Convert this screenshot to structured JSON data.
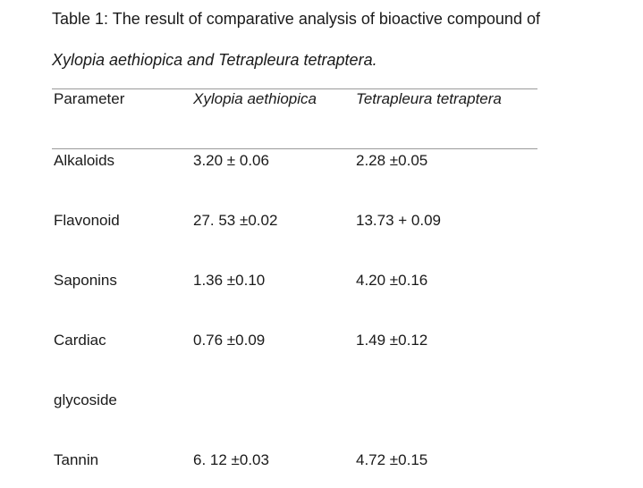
{
  "caption": {
    "label": "Table 1:",
    "text": " The result of comparative analysis of bioactive compound of",
    "line2": "Xylopia aethiopica and Tetrapleura tetraptera."
  },
  "table": {
    "headers": [
      "Parameter",
      "Xylopia aethiopica",
      "Tetrapleura tetraptera"
    ],
    "rows": [
      [
        "Alkaloids",
        "3.20 ± 0.06",
        "2.28 ±0.05"
      ],
      [
        "Flavonoid",
        "27. 53 ±0.02",
        "13.73 + 0.09"
      ],
      [
        "Saponins",
        "1.36 ±0.10",
        "4.20 ±0.16"
      ],
      [
        "Cardiac",
        "0.76 ±0.09",
        "1.49 ±0.12"
      ],
      [
        "glycoside",
        "",
        ""
      ],
      [
        "Tannin",
        "6. 12 ±0.03",
        "4.72 ±0.15"
      ]
    ]
  }
}
